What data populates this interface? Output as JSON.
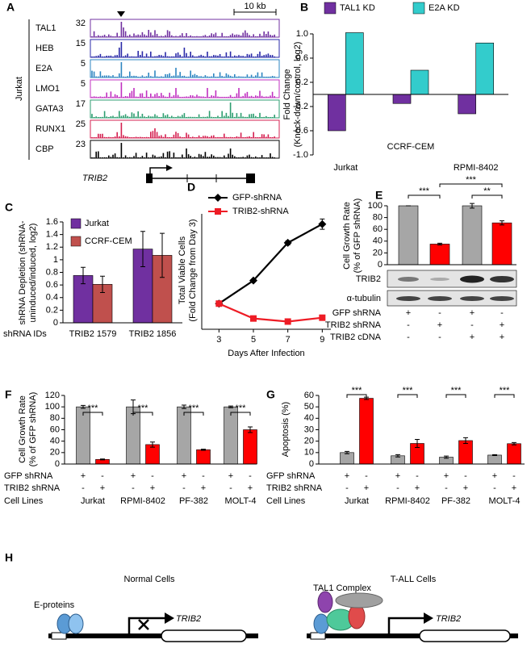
{
  "genome_tracks": {
    "panel": "A",
    "cell_line": "Jurkat",
    "scale_bar": "10 kb",
    "gene": "TRIB2",
    "tracks": [
      {
        "name": "TAL1",
        "max": 32,
        "color": "#7030a0"
      },
      {
        "name": "HEB",
        "max": 15,
        "color": "#2a2aa8"
      },
      {
        "name": "E2A",
        "max": 5,
        "color": "#2e86c1"
      },
      {
        "name": "LMO1",
        "max": 5,
        "color": "#c030c0"
      },
      {
        "name": "GATA3",
        "max": 17,
        "color": "#2e9e70"
      },
      {
        "name": "RUNX1",
        "max": 25,
        "color": "#d42050"
      },
      {
        "name": "CBP",
        "max": 23,
        "color": "#000000"
      }
    ]
  },
  "chart_data": [
    {
      "panel": "B",
      "type": "bar",
      "ylabel": [
        "Fold Change",
        "(Knock-down/control, log2)"
      ],
      "categories": [
        "Jurkat",
        "CCRF-CEM",
        "RPMI-8402"
      ],
      "series": [
        {
          "name": "TAL1 KD",
          "color": "#7030a0",
          "values": [
            -0.6,
            -0.15,
            -0.32
          ]
        },
        {
          "name": "E2A KD",
          "color": "#33cccc",
          "values": [
            1.02,
            0.4,
            0.85
          ]
        }
      ],
      "ylim": [
        -1,
        1
      ],
      "yticks": [
        {
          "value": -1,
          "label": "-1.0"
        },
        -0.6,
        -0.2,
        0.2,
        0.6,
        {
          "value": 1,
          "label": "1.0"
        }
      ]
    },
    {
      "panel": "C",
      "type": "bar",
      "ylabel": [
        "shRNA Depletion (shRNA-",
        "uninduced/induced, log2)"
      ],
      "xlabel": "shRNA IDs",
      "categories": [
        "TRIB2 1579",
        "TRIB2 1856"
      ],
      "series": [
        {
          "name": "Jurkat",
          "color": "#7030a0",
          "values": [
            0.75,
            1.17
          ],
          "errors": [
            0.13,
            0.28
          ]
        },
        {
          "name": "CCRF-CEM",
          "color": "#c0504d",
          "values": [
            0.61,
            1.07
          ],
          "errors": [
            0.13,
            0.35
          ]
        }
      ],
      "ylim": [
        0,
        1.6
      ],
      "yticks": [
        0,
        0.2,
        0.4,
        0.6,
        0.8,
        1,
        1.2,
        1.4,
        1.6
      ]
    },
    {
      "panel": "D",
      "type": "line",
      "ylabel": [
        "Total Viable Cells",
        "(Fold Change from Day 3)"
      ],
      "xlabel": "Days After Infection",
      "x": [
        3,
        5,
        7,
        9
      ],
      "series": [
        {
          "name": "GFP-shRNA",
          "color": "#000000",
          "marker": "diamond",
          "values": [
            1,
            1.9,
            3.37,
            4.1
          ],
          "errors": [
            0.02,
            0.05,
            0.08,
            0.2
          ]
        },
        {
          "name": "TRIB2-shRNA",
          "color": "#ee1c25",
          "marker": "square",
          "values": [
            1,
            0.42,
            0.3,
            0.45
          ],
          "errors": [
            0.03,
            0.02,
            0.02,
            0.03
          ]
        }
      ],
      "xlim": [
        2,
        9.5
      ],
      "xticks": [
        3,
        5,
        7,
        9
      ],
      "ylim": [
        0,
        4.5
      ]
    },
    {
      "panel": "E",
      "type": "bar",
      "ylabel": [
        "Cell Growth Rate",
        "(% of GFP shRNA)"
      ],
      "values": [
        100,
        35,
        100,
        71
      ],
      "errors": [
        0,
        1.5,
        4,
        3.5
      ],
      "colors": [
        "#a6a6a6",
        "#ff0000",
        "#a6a6a6",
        "#ff0000"
      ],
      "ylim": [
        0,
        100
      ],
      "yticks": [
        0,
        20,
        40,
        60,
        80,
        100
      ],
      "significance": [
        "***",
        "***",
        "**"
      ],
      "blot_labels": [
        "TRIB2",
        "α-tubulin"
      ],
      "conditions": [
        {
          "label": "GFP shRNA",
          "signs": [
            "+",
            "-",
            "+",
            "-"
          ]
        },
        {
          "label": "TRIB2 shRNA",
          "signs": [
            "-",
            "+",
            "-",
            "+"
          ]
        },
        {
          "label": "TRIB2 cDNA",
          "signs": [
            "-",
            "-",
            "+",
            "+"
          ]
        }
      ]
    },
    {
      "panel": "F",
      "type": "bar",
      "ylabel": [
        "Cell Growth Rate",
        "(% of GFP shRNA)"
      ],
      "xlabel": "Cell Lines",
      "categories": [
        "Jurkat",
        "RPMI-8402",
        "PF-382",
        "MOLT-4"
      ],
      "series": [
        {
          "name": "GFP shRNA",
          "color": "#a6a6a6",
          "values": [
            100,
            100,
            100,
            100
          ],
          "errors": [
            2.5,
            12,
            3,
            1.5
          ],
          "signs": [
            "+",
            "-",
            "+",
            "-",
            "+",
            "-",
            "+",
            "-"
          ]
        },
        {
          "name": "TRIB2 shRNA",
          "color": "#ff0000",
          "values": [
            8,
            34,
            25,
            60
          ],
          "errors": [
            0.8,
            4.5,
            1,
            5
          ],
          "signs": [
            "-",
            "+",
            "-",
            "+",
            "-",
            "+",
            "-",
            "+"
          ]
        }
      ],
      "ylim": [
        0,
        120
      ],
      "yticks": [
        0,
        20,
        40,
        60,
        80,
        100,
        120
      ],
      "significance": [
        "***",
        "***",
        "***",
        "***"
      ]
    },
    {
      "panel": "G",
      "type": "bar",
      "ylabel": [
        "Apoptosis (%)"
      ],
      "xlabel": "Cell Lines",
      "categories": [
        "Jurkat",
        "RPMI-8402",
        "PF-382",
        "MOLT-4"
      ],
      "series": [
        {
          "name": "GFP shRNA",
          "color": "#a6a6a6",
          "values": [
            10,
            7.2,
            6,
            7.8
          ],
          "errors": [
            1,
            1,
            1,
            0.4
          ],
          "signs": [
            "+",
            "-",
            "+",
            "-",
            "+",
            "-",
            "+",
            "-"
          ]
        },
        {
          "name": "TRIB2 shRNA",
          "color": "#ff0000",
          "values": [
            57.5,
            18,
            20.5,
            17.8
          ],
          "errors": [
            1,
            3.5,
            2.5,
            1
          ],
          "signs": [
            "-",
            "+",
            "-",
            "+",
            "-",
            "+",
            "-",
            "+"
          ]
        }
      ],
      "ylim": [
        0,
        60
      ],
      "yticks": [
        0,
        10,
        20,
        30,
        40,
        50,
        60
      ],
      "significance": [
        "***",
        "***",
        "***",
        "***"
      ]
    }
  ],
  "diagram": {
    "panel": "H",
    "left": {
      "title": "Normal Cells",
      "factor": "E-proteins",
      "gene": "TRIB2"
    },
    "right": {
      "title": "T-ALL Cells",
      "factor": "TAL1 Complex",
      "gene": "TRIB2"
    }
  }
}
